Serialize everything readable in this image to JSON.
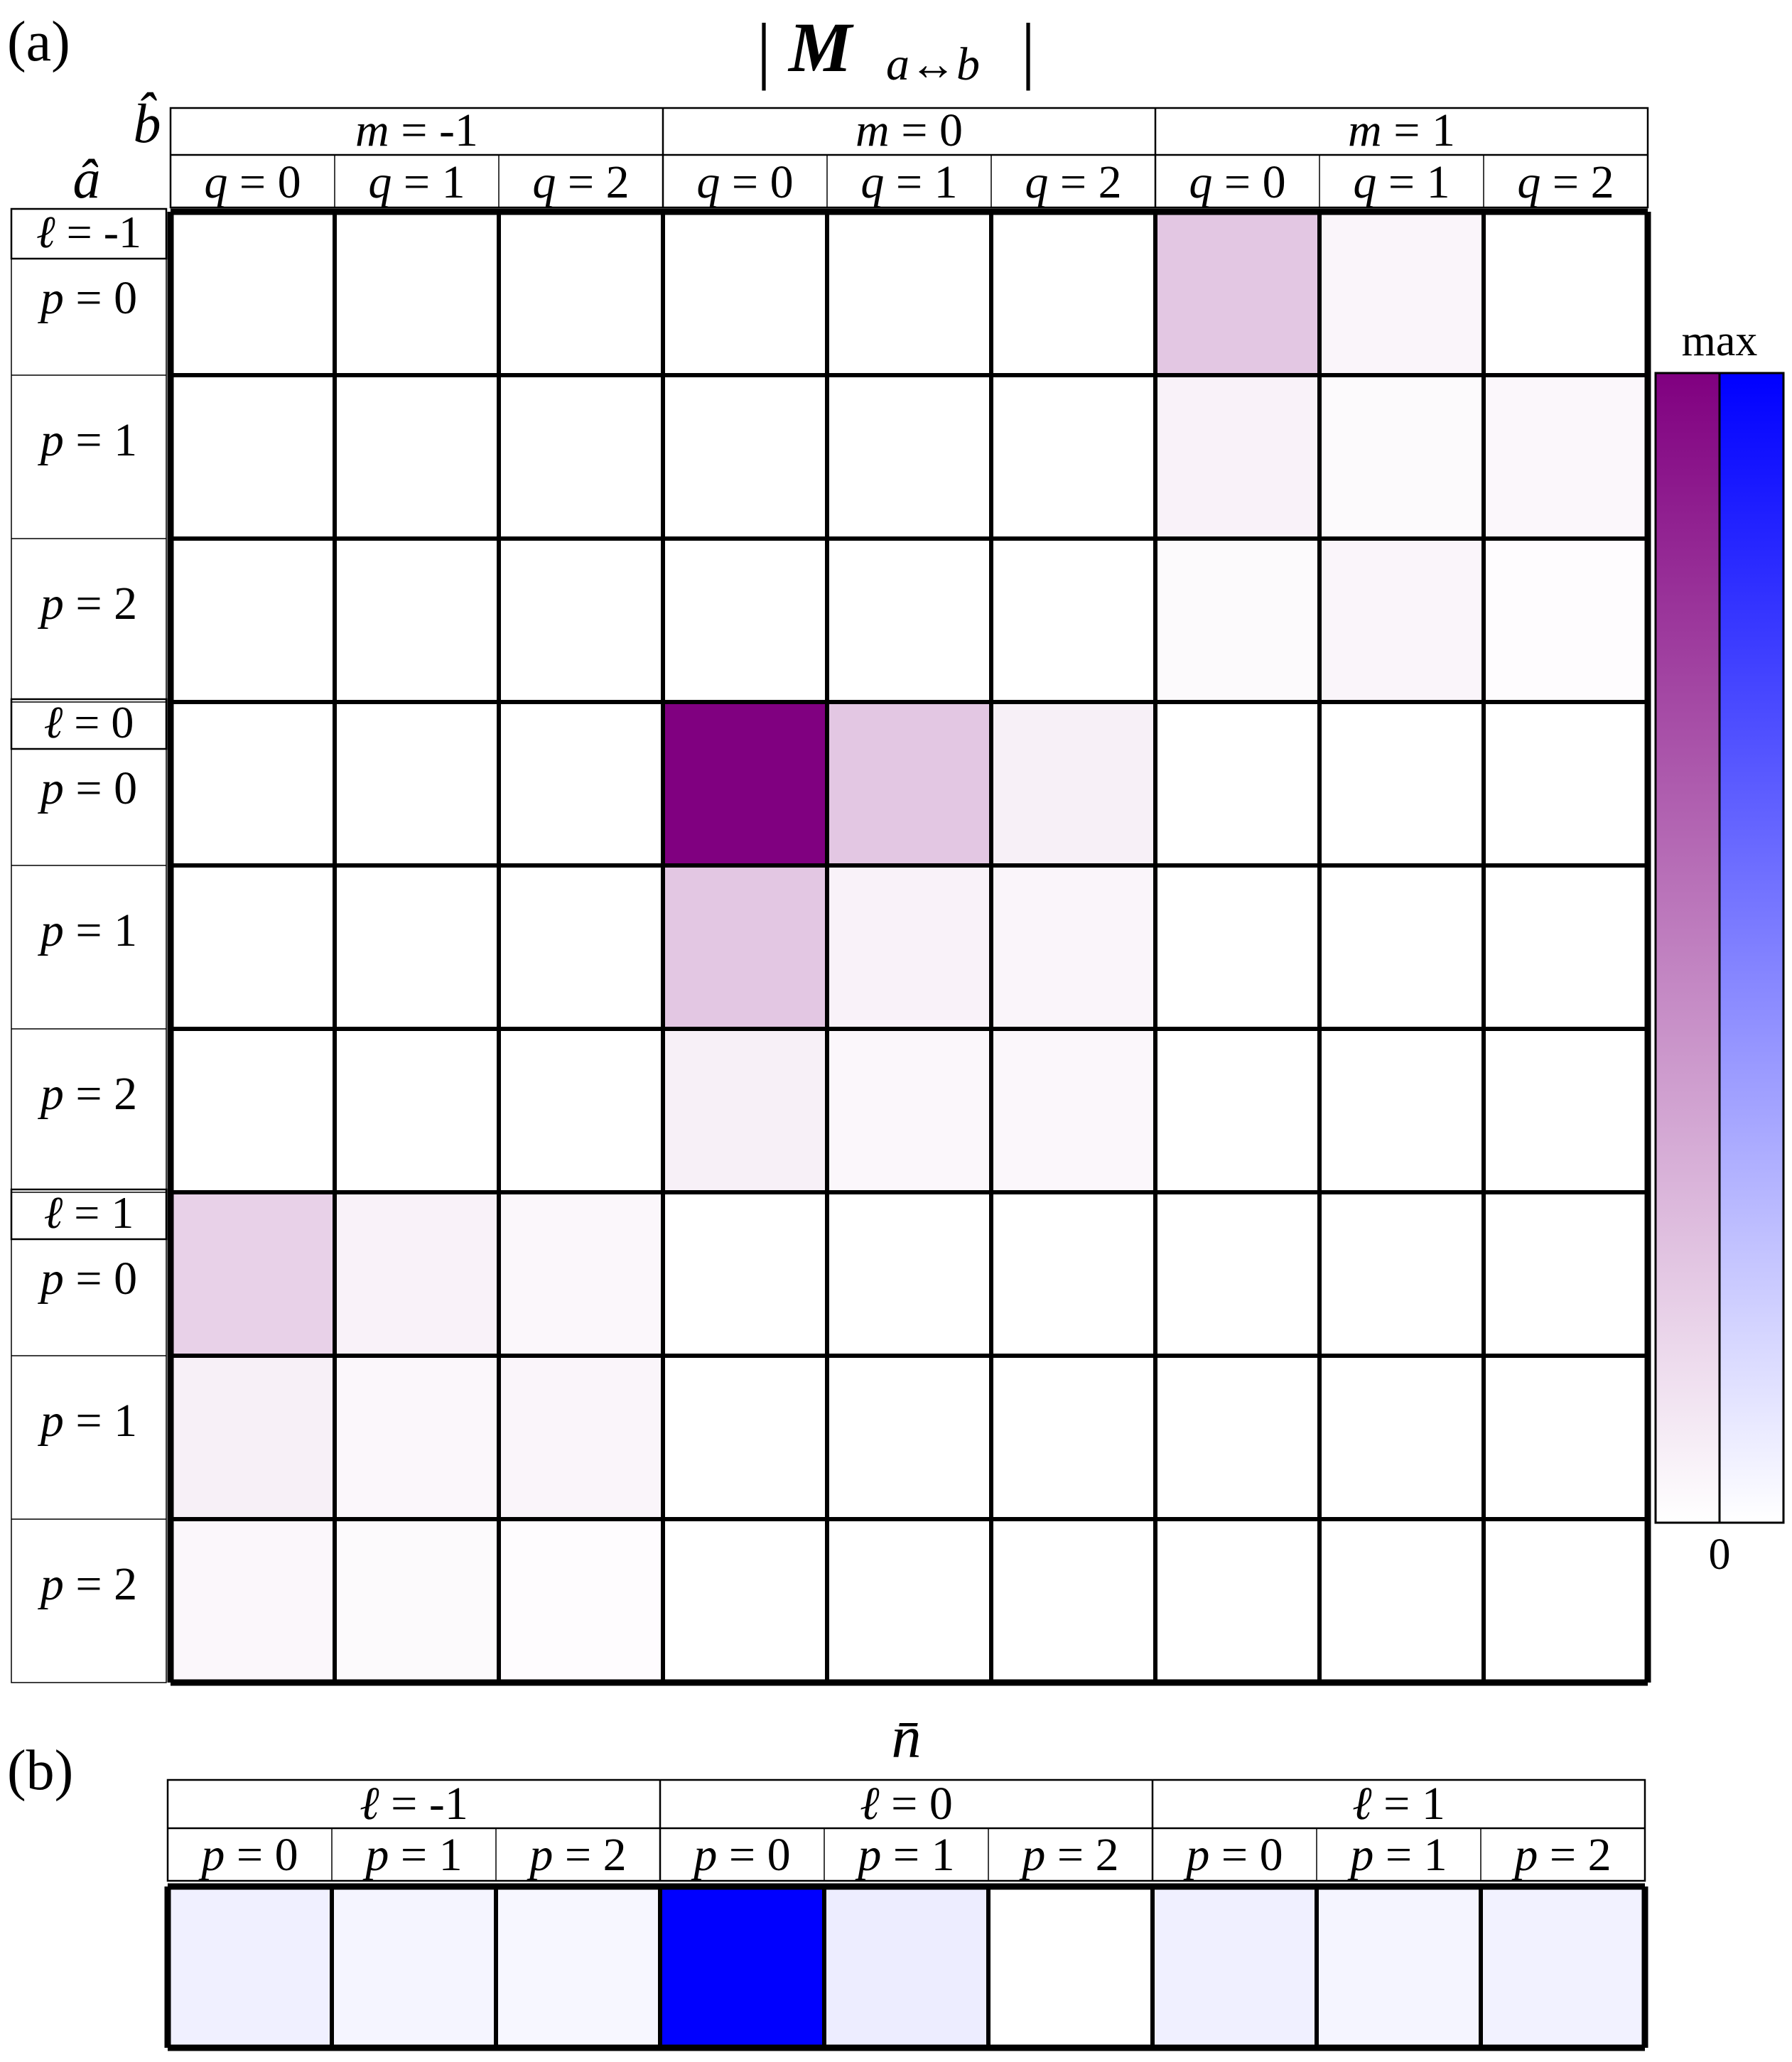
{
  "chart_data": [
    {
      "panel_label": "(a)",
      "type": "heatmap",
      "title": {
        "pre": "|",
        "main": "M",
        "sub": "a↔b",
        "post": "|"
      },
      "corner_labels": {
        "col_axis": "b̂",
        "row_axis": "â"
      },
      "col_groups": [
        {
          "sym": "m",
          "eq": " = ",
          "val": "-1"
        },
        {
          "sym": "m",
          "eq": " = ",
          "val": "0"
        },
        {
          "sym": "m",
          "eq": " = ",
          "val": "1"
        }
      ],
      "col_sub": [
        {
          "sym": "q",
          "eq": " = ",
          "val": "0"
        },
        {
          "sym": "q",
          "eq": " = ",
          "val": "1"
        },
        {
          "sym": "q",
          "eq": " = ",
          "val": "2"
        }
      ],
      "row_groups": [
        {
          "sym": "ℓ",
          "eq": " = ",
          "val": "-1"
        },
        {
          "sym": "ℓ",
          "eq": " = ",
          "val": "0"
        },
        {
          "sym": "ℓ",
          "eq": " = ",
          "val": "1"
        }
      ],
      "row_sub": [
        {
          "sym": "p",
          "eq": " = ",
          "val": "0"
        },
        {
          "sym": "p",
          "eq": " = ",
          "val": "1"
        },
        {
          "sym": "p",
          "eq": " = ",
          "val": "2"
        }
      ],
      "color_min": "#ffffff",
      "color_max": "#800080",
      "values": [
        [
          0,
          0,
          0,
          0,
          0,
          0,
          0.22,
          0.04,
          0
        ],
        [
          0,
          0,
          0,
          0,
          0,
          0,
          0.05,
          0.02,
          0.03
        ],
        [
          0,
          0,
          0,
          0,
          0,
          0,
          0.02,
          0.04,
          0.01
        ],
        [
          0,
          0,
          0,
          1.0,
          0.22,
          0.06,
          0,
          0,
          0
        ],
        [
          0,
          0,
          0,
          0.22,
          0.05,
          0.04,
          0,
          0,
          0
        ],
        [
          0,
          0,
          0,
          0.06,
          0.03,
          0.03,
          0,
          0,
          0
        ],
        [
          0.18,
          0.05,
          0.03,
          0,
          0,
          0,
          0,
          0,
          0
        ],
        [
          0.06,
          0.03,
          0.04,
          0,
          0,
          0,
          0,
          0,
          0
        ],
        [
          0.03,
          0.02,
          0.01,
          0,
          0,
          0,
          0,
          0,
          0
        ]
      ]
    },
    {
      "panel_label": "(b)",
      "type": "heatmap",
      "title": "n̄",
      "col_groups": [
        {
          "sym": "ℓ",
          "eq": " = ",
          "val": "-1"
        },
        {
          "sym": "ℓ",
          "eq": " = ",
          "val": "0"
        },
        {
          "sym": "ℓ",
          "eq": " = ",
          "val": "1"
        }
      ],
      "col_sub": [
        {
          "sym": "p",
          "eq": " = ",
          "val": "0"
        },
        {
          "sym": "p",
          "eq": " = ",
          "val": "1"
        },
        {
          "sym": "p",
          "eq": " = ",
          "val": "2"
        }
      ],
      "color_min": "#ffffff",
      "color_max": "#0000ff",
      "values": [
        0.06,
        0.04,
        0.03,
        1.0,
        0.07,
        0.0,
        0.06,
        0.04,
        0.05
      ]
    }
  ],
  "colorbar": {
    "max_label": "max",
    "min_label": "0",
    "colors": [
      "#800080",
      "#0000ff"
    ]
  }
}
